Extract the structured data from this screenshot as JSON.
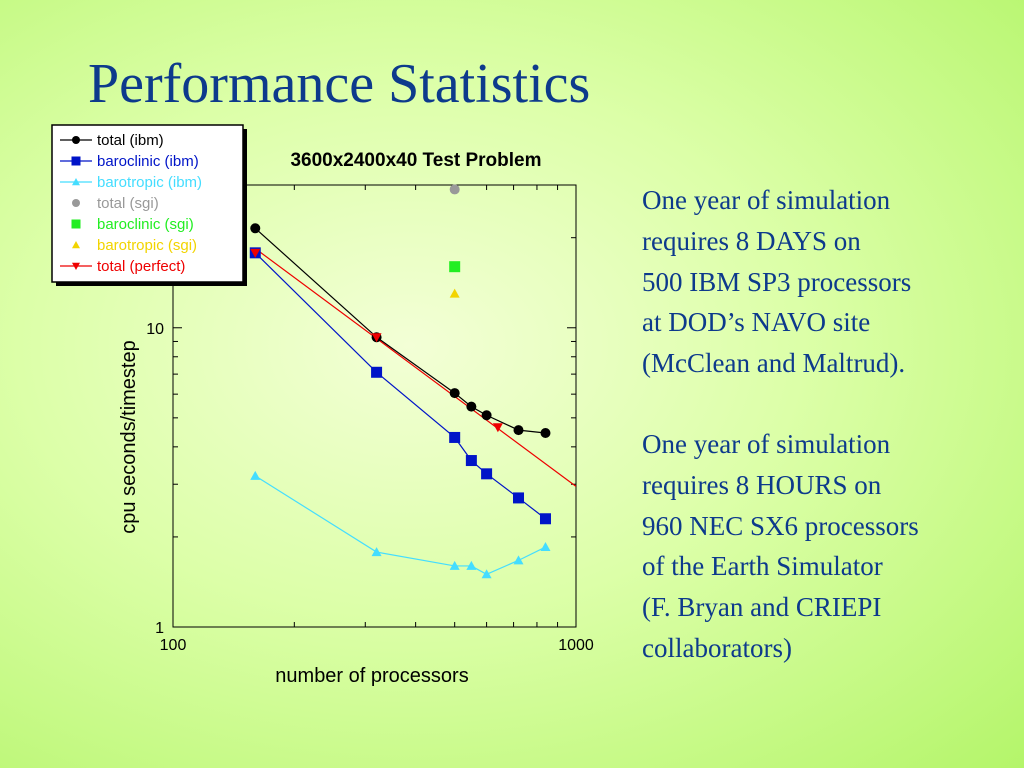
{
  "slide": {
    "title": "Performance Statistics",
    "notes": [
      [
        "One year of simulation",
        "requires 8 DAYS on",
        "500  IBM SP3 processors",
        "at DOD’s NAVO site",
        "(McClean and Maltrud)."
      ],
      [
        "One year of simulation",
        "requires 8 HOURS on",
        "960 NEC SX6 processors",
        "of the Earth Simulator",
        "(F. Bryan and CRIEPI",
        "collaborators)"
      ]
    ]
  },
  "chart_data": {
    "type": "line",
    "title": "3600x2400x40 Test Problem",
    "xlabel": "number of processors",
    "ylabel": "cpu seconds/timestep",
    "xscale": "log",
    "yscale": "log",
    "xlim": [
      100,
      1000
    ],
    "ylim": [
      1,
      30
    ],
    "xticks": [
      {
        "value": 100,
        "label": "100"
      },
      {
        "value": 1000,
        "label": "1000"
      }
    ],
    "yticks": [
      {
        "value": 1,
        "label": "1"
      },
      {
        "value": 10,
        "label": "10"
      }
    ],
    "legend_position": "top-left",
    "grid": false,
    "series": [
      {
        "name": "total (ibm)",
        "color": "#000000",
        "marker": "circle",
        "line": true,
        "x": [
          160,
          320,
          500,
          550,
          600,
          720,
          840
        ],
        "y": [
          21.5,
          9.3,
          6.05,
          5.45,
          5.1,
          4.55,
          4.45
        ]
      },
      {
        "name": "baroclinic (ibm)",
        "color": "#0014c8",
        "marker": "square",
        "line": true,
        "x": [
          160,
          320,
          500,
          550,
          600,
          720,
          840
        ],
        "y": [
          17.8,
          7.1,
          4.3,
          3.6,
          3.25,
          2.7,
          2.3
        ]
      },
      {
        "name": "barotropic (ibm)",
        "color": "#44ddff",
        "marker": "triangle-up",
        "line": true,
        "x": [
          160,
          320,
          500,
          550,
          600,
          720,
          840
        ],
        "y": [
          3.2,
          1.78,
          1.6,
          1.6,
          1.5,
          1.67,
          1.85
        ]
      },
      {
        "name": "total (sgi)",
        "color": "#999999",
        "marker": "circle",
        "line": false,
        "x": [
          500
        ],
        "y": [
          29
        ]
      },
      {
        "name": "baroclinic (sgi)",
        "color": "#22ee22",
        "marker": "square",
        "line": false,
        "x": [
          500
        ],
        "y": [
          16
        ]
      },
      {
        "name": "barotropic (sgi)",
        "color": "#f2d400",
        "marker": "triangle-up",
        "line": false,
        "x": [
          500
        ],
        "y": [
          13
        ]
      },
      {
        "name": "total (perfect)",
        "color": "#ee0000",
        "marker": "triangle-down",
        "line": true,
        "line_x": [
          160,
          1000
        ],
        "line_y": [
          18.4,
          2.95
        ],
        "x": [
          160,
          320,
          640
        ],
        "y": [
          17.8,
          9.3,
          4.65
        ]
      }
    ]
  }
}
